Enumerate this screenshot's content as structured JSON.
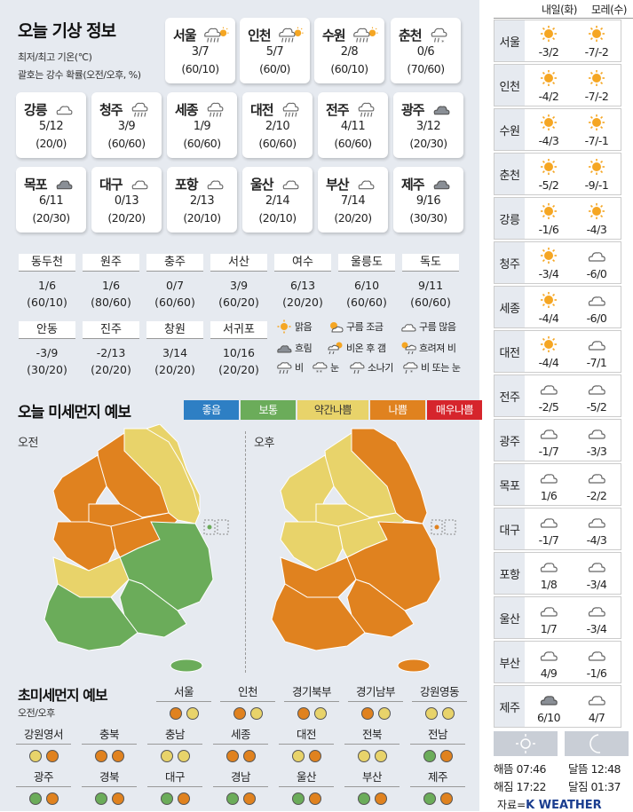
{
  "title": "오늘 기상 정보",
  "subtitle1": "최저/최고 기온(℃)",
  "subtitle2": "괄호는 강수 확률(오전/오후, %)",
  "cities": [
    {
      "name": "서울",
      "icon": "rain-sun",
      "temp": "3/7",
      "pop": "(60/10)"
    },
    {
      "name": "인천",
      "icon": "rain-sun",
      "temp": "5/7",
      "pop": "(60/0)"
    },
    {
      "name": "수원",
      "icon": "rain-sun",
      "temp": "2/8",
      "pop": "(60/10)"
    },
    {
      "name": "춘천",
      "icon": "cloud-snow",
      "temp": "0/6",
      "pop": "(70/60)"
    },
    {
      "name": "강릉",
      "icon": "cloud",
      "temp": "5/12",
      "pop": "(20/0)"
    },
    {
      "name": "청주",
      "icon": "rain",
      "temp": "3/9",
      "pop": "(60/60)"
    },
    {
      "name": "세종",
      "icon": "rain",
      "temp": "1/9",
      "pop": "(60/60)"
    },
    {
      "name": "대전",
      "icon": "rain",
      "temp": "2/10",
      "pop": "(60/60)"
    },
    {
      "name": "전주",
      "icon": "rain",
      "temp": "4/11",
      "pop": "(60/60)"
    },
    {
      "name": "광주",
      "icon": "cloud-dark",
      "temp": "3/12",
      "pop": "(20/30)"
    },
    {
      "name": "목포",
      "icon": "cloud-dark",
      "temp": "6/11",
      "pop": "(20/30)"
    },
    {
      "name": "대구",
      "icon": "cloud",
      "temp": "0/13",
      "pop": "(20/20)"
    },
    {
      "name": "포항",
      "icon": "cloud",
      "temp": "2/13",
      "pop": "(20/10)"
    },
    {
      "name": "울산",
      "icon": "cloud",
      "temp": "2/14",
      "pop": "(20/10)"
    },
    {
      "name": "부산",
      "icon": "cloud",
      "temp": "7/14",
      "pop": "(20/20)"
    },
    {
      "name": "제주",
      "icon": "cloud-dark",
      "temp": "9/16",
      "pop": "(30/30)"
    }
  ],
  "small_cities": [
    {
      "name": "동두천",
      "temp": "1/6",
      "pop": "(60/10)"
    },
    {
      "name": "원주",
      "temp": "1/6",
      "pop": "(80/60)"
    },
    {
      "name": "충주",
      "temp": "0/7",
      "pop": "(60/60)"
    },
    {
      "name": "서산",
      "temp": "3/9",
      "pop": "(60/20)"
    },
    {
      "name": "여수",
      "temp": "6/13",
      "pop": "(20/20)"
    },
    {
      "name": "울릉도",
      "temp": "6/10",
      "pop": "(60/60)"
    },
    {
      "name": "독도",
      "temp": "9/11",
      "pop": "(60/60)"
    },
    {
      "name": "안동",
      "temp": "-3/9",
      "pop": "(30/20)"
    },
    {
      "name": "진주",
      "temp": "-2/13",
      "pop": "(20/20)"
    },
    {
      "name": "창원",
      "temp": "3/14",
      "pop": "(20/20)"
    },
    {
      "name": "서귀포",
      "temp": "10/16",
      "pop": "(20/20)"
    }
  ],
  "legend": {
    "clear": "맑음",
    "partly": "구름 조금",
    "mostly": "구름 많음",
    "cloudy": "흐림",
    "rain_then_clear": "비온 후 갬",
    "cloudy_then_rain": "흐려져 비",
    "rain": "비",
    "snow": "눈",
    "shower": "소나기",
    "rain_or_snow": "비 또는 눈"
  },
  "dust": {
    "title": "오늘 미세먼지 예보",
    "am": "오전",
    "pm": "오후",
    "levels": [
      {
        "label": "좋음",
        "color": "#2e7fc4"
      },
      {
        "label": "보통",
        "color": "#6bac5a"
      },
      {
        "label": "약간나쁨",
        "color": "#e8d36a"
      },
      {
        "label": "나쁨",
        "color": "#e0821f"
      },
      {
        "label": "매우나쁨",
        "color": "#d6252c"
      }
    ]
  },
  "pm25": {
    "title": "초미세먼지 예보",
    "sub": "오전/오후",
    "regions": [
      {
        "name": "서울",
        "am": "#e0821f",
        "pm": "#e8d36a"
      },
      {
        "name": "인천",
        "am": "#e0821f",
        "pm": "#e8d36a"
      },
      {
        "name": "경기북부",
        "am": "#e0821f",
        "pm": "#e8d36a"
      },
      {
        "name": "경기남부",
        "am": "#e0821f",
        "pm": "#e8d36a"
      },
      {
        "name": "강원영동",
        "am": "#e8d36a",
        "pm": "#e8d36a"
      },
      {
        "name": "강원영서",
        "am": "#e8d36a",
        "pm": "#e0821f"
      },
      {
        "name": "충북",
        "am": "#e0821f",
        "pm": "#e0821f"
      },
      {
        "name": "충남",
        "am": "#e8d36a",
        "pm": "#e8d36a"
      },
      {
        "name": "세종",
        "am": "#e0821f",
        "pm": "#e0821f"
      },
      {
        "name": "대전",
        "am": "#e8d36a",
        "pm": "#e0821f"
      },
      {
        "name": "전북",
        "am": "#e8d36a",
        "pm": "#e8d36a"
      },
      {
        "name": "전남",
        "am": "#6bac5a",
        "pm": "#e0821f"
      },
      {
        "name": "광주",
        "am": "#6bac5a",
        "pm": "#e0821f"
      },
      {
        "name": "경북",
        "am": "#6bac5a",
        "pm": "#e0821f"
      },
      {
        "name": "대구",
        "am": "#6bac5a",
        "pm": "#e0821f"
      },
      {
        "name": "경남",
        "am": "#6bac5a",
        "pm": "#e0821f"
      },
      {
        "name": "울산",
        "am": "#6bac5a",
        "pm": "#e0821f"
      },
      {
        "name": "부산",
        "am": "#6bac5a",
        "pm": "#e0821f"
      },
      {
        "name": "제주",
        "am": "#6bac5a",
        "pm": "#e0821f"
      }
    ]
  },
  "forecast": {
    "day1": "내일(화)",
    "day2": "모레(수)",
    "rows": [
      {
        "city": "서울",
        "i1": "sun",
        "t1": "-3/2",
        "i2": "sun",
        "t2": "-7/-2"
      },
      {
        "city": "인천",
        "i1": "sun",
        "t1": "-4/2",
        "i2": "sun",
        "t2": "-7/-2"
      },
      {
        "city": "수원",
        "i1": "sun",
        "t1": "-4/3",
        "i2": "sun",
        "t2": "-7/-1"
      },
      {
        "city": "춘천",
        "i1": "sun",
        "t1": "-5/2",
        "i2": "sun",
        "t2": "-9/-1"
      },
      {
        "city": "강릉",
        "i1": "sun",
        "t1": "-1/6",
        "i2": "sun",
        "t2": "-4/3"
      },
      {
        "city": "청주",
        "i1": "sun",
        "t1": "-3/4",
        "i2": "cloud",
        "t2": "-6/0"
      },
      {
        "city": "세종",
        "i1": "sun",
        "t1": "-4/4",
        "i2": "cloud",
        "t2": "-6/0"
      },
      {
        "city": "대전",
        "i1": "sun",
        "t1": "-4/4",
        "i2": "cloud",
        "t2": "-7/1"
      },
      {
        "city": "전주",
        "i1": "cloud",
        "t1": "-2/5",
        "i2": "cloud",
        "t2": "-5/2"
      },
      {
        "city": "광주",
        "i1": "cloud",
        "t1": "-1/7",
        "i2": "cloud",
        "t2": "-3/3"
      },
      {
        "city": "목포",
        "i1": "cloud",
        "t1": "1/6",
        "i2": "cloud",
        "t2": "-2/2"
      },
      {
        "city": "대구",
        "i1": "cloud",
        "t1": "-1/7",
        "i2": "cloud",
        "t2": "-4/3"
      },
      {
        "city": "포항",
        "i1": "cloud",
        "t1": "1/8",
        "i2": "cloud",
        "t2": "-3/4"
      },
      {
        "city": "울산",
        "i1": "cloud",
        "t1": "1/7",
        "i2": "cloud",
        "t2": "-3/4"
      },
      {
        "city": "부산",
        "i1": "cloud",
        "t1": "4/9",
        "i2": "cloud",
        "t2": "-1/6"
      },
      {
        "city": "제주",
        "i1": "cloud-dark",
        "t1": "6/10",
        "i2": "cloud",
        "t2": "4/7"
      }
    ]
  },
  "sun": {
    "sunrise": "해뜸 07:46",
    "sunset": "해짐 17:22",
    "moonrise": "달뜸 12:48",
    "moonset": "달짐 01:37"
  },
  "source": "자료=",
  "source_brand": "K WEATHER"
}
